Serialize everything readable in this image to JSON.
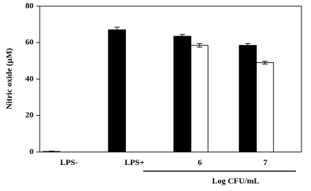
{
  "chart_data": {
    "type": "bar",
    "y_label": "Nitric oxide (µM)",
    "x_group_label": "Log CFU/mL",
    "categories": [
      "LPS-",
      "LPS+",
      "6",
      "7"
    ],
    "series": [
      {
        "color": "#000000",
        "values": [
          0.3,
          67,
          63.5,
          58.5
        ],
        "errors": [
          0.2,
          1.5,
          1,
          1
        ]
      },
      {
        "color": "#ffffff",
        "values": [
          null,
          null,
          58.5,
          49
        ],
        "errors": [
          null,
          null,
          1,
          0.8
        ]
      }
    ],
    "ylim": [
      0,
      80
    ],
    "yticks": [
      0,
      20,
      40,
      60,
      80
    ],
    "grid": false
  }
}
